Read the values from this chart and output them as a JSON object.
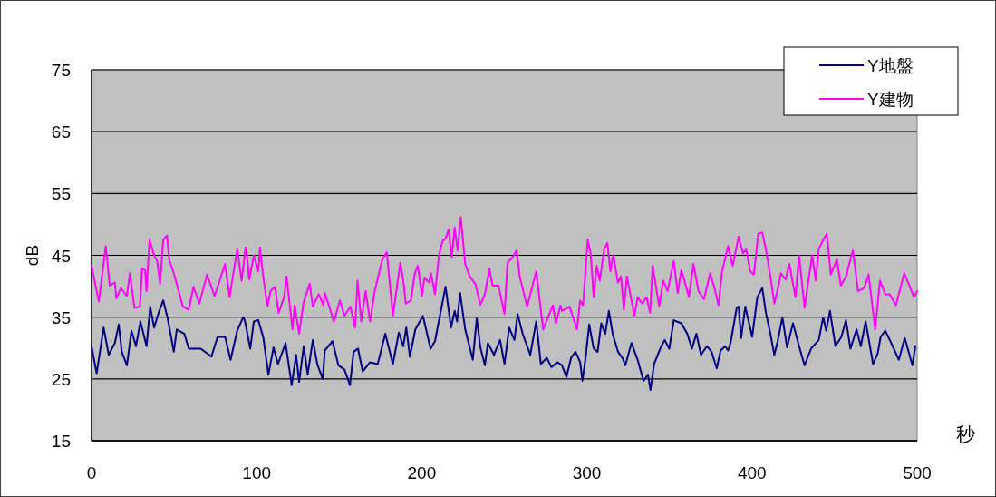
{
  "chart_data": {
    "type": "line",
    "xlabel": "秒",
    "ylabel": "dB",
    "xlim": [
      0,
      500
    ],
    "ylim": [
      15,
      75
    ],
    "xticks": [
      0,
      100,
      200,
      300,
      400,
      500
    ],
    "yticks": [
      15,
      25,
      35,
      45,
      55,
      65,
      75
    ],
    "grid": "y",
    "legend": "top right",
    "marker": "none",
    "line_style": "solid",
    "series": [
      {
        "name": "Y地盤",
        "color": "#000080",
        "x": [
          0,
          3.1,
          7.3,
          10.4,
          14.1,
          16.5,
          18.3,
          21.4,
          24.2,
          26.9,
          29.6,
          33.3,
          35.5,
          37.9,
          40.6,
          43.4,
          46.1,
          49.8,
          51.6,
          56.2,
          58.9,
          66.2,
          72.6,
          76.3,
          80.9,
          84.2,
          88.2,
          91.9,
          92.8,
          96.1,
          98.3,
          101,
          104.1,
          107.1,
          110.2,
          112.9,
          117.5,
          121.2,
          123.9,
          125.7,
          128.5,
          130.9,
          134,
          136.7,
          140,
          141.3,
          145.9,
          149.5,
          153.2,
          156.5,
          158.7,
          161.4,
          164.2,
          168.7,
          173.3,
          177.9,
          182.5,
          186.1,
          188.8,
          190.6,
          192.8,
          196.1,
          200.7,
          205.3,
          208,
          210.8,
          214.4,
          217.7,
          219.9,
          221.4,
          223.2,
          226.3,
          230.9,
          233.3,
          235.5,
          238.2,
          240,
          243.7,
          247.4,
          250.1,
          252.9,
          256.1,
          258,
          261.1,
          265.7,
          269.3,
          272.1,
          275.7,
          278.5,
          282.1,
          284.9,
          287.6,
          290.4,
          293.1,
          295.9,
          297.3,
          299.2,
          301.4,
          304.1,
          306.5,
          308.7,
          311.1,
          313.3,
          315.6,
          318.8,
          321.5,
          323.3,
          327,
          330.7,
          334.3,
          337,
          338.5,
          340.7,
          344.4,
          347.1,
          349.9,
          352.6,
          357.2,
          360.8,
          363.6,
          366.3,
          369.1,
          372.7,
          375.5,
          378.6,
          381,
          383.7,
          385.5,
          387,
          390.7,
          391.9,
          393.4,
          395.9,
          400.1,
          403.2,
          406.2,
          408.4,
          411.1,
          413.5,
          415.7,
          418.4,
          421.2,
          424.8,
          428.5,
          431.8,
          435.8,
          440.4,
          443.1,
          444.9,
          447.2,
          450.5,
          454.1,
          456.9,
          459.6,
          463.3,
          465.9,
          468.8,
          473.3,
          476.1,
          477.9,
          480.7,
          484.3,
          488.9,
          492.5,
          497.1,
          498.9
        ],
        "values": [
          30.3,
          25.9,
          33.3,
          28.9,
          30.8,
          33.8,
          29.4,
          27.2,
          32.8,
          30.3,
          34.3,
          30.3,
          36.7,
          33.3,
          35.7,
          37.7,
          34.8,
          29.4,
          33,
          32.3,
          29.9,
          29.9,
          28.6,
          31.8,
          31.8,
          28.1,
          32.8,
          35,
          34.5,
          29.9,
          34.3,
          34.5,
          31.6,
          25.7,
          30.1,
          27.4,
          30.8,
          24,
          28.9,
          24.5,
          30.3,
          25.7,
          31.3,
          27.4,
          25,
          29.6,
          31.1,
          27.2,
          26.5,
          24,
          29.4,
          29.9,
          26.2,
          27.7,
          27.4,
          32.3,
          27.4,
          32.5,
          30.3,
          33.3,
          28.6,
          33,
          35.2,
          29.9,
          31.1,
          35,
          39.9,
          33.3,
          36,
          34.3,
          38.9,
          33,
          28.1,
          34.8,
          30.1,
          27.2,
          30.8,
          28.9,
          31.3,
          27.4,
          33.3,
          31.3,
          35.5,
          32.3,
          28.9,
          34.3,
          27.4,
          28.4,
          26.9,
          27.7,
          27.2,
          25.3,
          28.4,
          29.4,
          27.7,
          24.7,
          28.4,
          33.8,
          29.9,
          29.4,
          34,
          32.3,
          36,
          32.3,
          29.4,
          28.4,
          27.2,
          30.8,
          28.1,
          24.7,
          25.7,
          23.2,
          27.4,
          29.9,
          31.3,
          29.9,
          34.5,
          34,
          32.3,
          29.9,
          32.3,
          28.9,
          30.3,
          29.4,
          26.7,
          29.6,
          30.3,
          29.6,
          30.8,
          36.5,
          36.7,
          31.6,
          36.7,
          31.8,
          38.2,
          39.7,
          35.7,
          32.3,
          28.9,
          31.3,
          35,
          30.1,
          34,
          30.3,
          27.2,
          29.9,
          31.3,
          35,
          32.8,
          36,
          30.3,
          31.8,
          34.5,
          29.9,
          33,
          30.3,
          34.3,
          27.4,
          29.1,
          31.8,
          32.8,
          30.8,
          28.1,
          31.6,
          27.2,
          30.3
        ]
      },
      {
        "name": "Y建物",
        "color": "#ff00ff",
        "x": [
          0,
          4.4,
          8.6,
          11,
          14.1,
          15,
          17.7,
          21.4,
          23.2,
          26,
          29.3,
          30.6,
          32.4,
          33.3,
          35.1,
          37.9,
          39.7,
          41.5,
          43.4,
          45.7,
          47,
          49.8,
          55.3,
          58.9,
          61.7,
          65.3,
          69.9,
          74.5,
          80.9,
          83.6,
          88.2,
          90.9,
          93.3,
          93.7,
          95.5,
          98.3,
          101,
          102,
          103.8,
          106.5,
          108.4,
          111.1,
          113.3,
          116.6,
          118.1,
          121.7,
          123,
          125.7,
          128.5,
          132.1,
          134,
          137.6,
          140.4,
          141.3,
          146.8,
          150.4,
          153.2,
          156.8,
          159.6,
          161.1,
          163.3,
          166,
          168.7,
          171.5,
          176.1,
          178.8,
          182.5,
          187,
          188.8,
          190.3,
          193.4,
          195.8,
          197.6,
          200.1,
          201.6,
          204.4,
          205.6,
          208,
          210.4,
          212.6,
          214.4,
          216.3,
          218.1,
          219.9,
          221.7,
          223.6,
          226.3,
          229,
          232.4,
          235.5,
          238.2,
          241,
          242.8,
          246.4,
          250.1,
          251.9,
          254.7,
          257.4,
          259.3,
          263.8,
          269.3,
          273.5,
          275.7,
          279.4,
          281.2,
          284,
          284.9,
          289.5,
          292.2,
          294,
          295.9,
          297.7,
          300.5,
          302.3,
          304.1,
          306,
          307.8,
          310.5,
          312.4,
          314.2,
          316,
          318.8,
          320.6,
          322.4,
          324.2,
          328.8,
          330.7,
          333.4,
          336.1,
          338.3,
          339.8,
          343.8,
          346.2,
          348.9,
          352.6,
          355,
          357.2,
          359.9,
          361.8,
          364.5,
          367.6,
          370.9,
          374.6,
          377.3,
          379.7,
          381.9,
          385.5,
          388.3,
          391.9,
          394.6,
          396.5,
          398.9,
          401.1,
          403.8,
          406.2,
          408.4,
          411.1,
          413.5,
          415.3,
          417.5,
          420.3,
          422.6,
          426.3,
          428.5,
          431.8,
          434,
          436.4,
          438.6,
          440.4,
          443.1,
          445.3,
          447.7,
          451.4,
          453.8,
          456.9,
          461.1,
          464.2,
          467.9,
          470.6,
          474.6,
          477.5,
          480.7,
          483.4,
          487.1,
          492.2,
          495.3,
          498.1,
          500
        ],
        "values": [
          43.3,
          37.5,
          46.5,
          40.1,
          40.6,
          38,
          39.7,
          38.4,
          42.1,
          36.5,
          36.7,
          42.8,
          42.6,
          39.2,
          47.5,
          45,
          44.1,
          40.4,
          47.5,
          48.2,
          44.3,
          42.1,
          36.7,
          36.2,
          39.9,
          37.2,
          41.9,
          38.4,
          43.6,
          38.2,
          46,
          40.9,
          46.3,
          46,
          41.1,
          45,
          42.4,
          46.3,
          41.9,
          36.7,
          39.2,
          39.9,
          35.7,
          38.2,
          41.6,
          33,
          36.9,
          32.3,
          37.5,
          40.4,
          36.7,
          38.7,
          36.9,
          38.9,
          34.3,
          37.7,
          35.2,
          36.7,
          33.3,
          40.9,
          34.3,
          39.2,
          34.3,
          39.2,
          44.3,
          45.5,
          35.2,
          43.8,
          40.9,
          37.2,
          37.7,
          42.1,
          43.3,
          38.4,
          41.4,
          40.6,
          42.1,
          38.7,
          45,
          47.3,
          47.7,
          49.2,
          44.6,
          49.5,
          45.8,
          51.2,
          43.6,
          41.6,
          40.4,
          37,
          38.7,
          42.8,
          40.1,
          40.1,
          35.5,
          43.8,
          44.6,
          45.8,
          41.6,
          36.7,
          42.4,
          33,
          34.5,
          36.9,
          34,
          36.9,
          36,
          36.7,
          34.5,
          33,
          37.7,
          36.9,
          47.5,
          45.3,
          38.2,
          43.3,
          40.9,
          46,
          47,
          42.4,
          45,
          40.6,
          41.6,
          36.2,
          41.6,
          35.2,
          38.2,
          37.2,
          38.2,
          35.7,
          43.3,
          36.7,
          40.9,
          39.2,
          44.1,
          38.9,
          42.6,
          40.1,
          38.2,
          43.6,
          39.2,
          37.9,
          42.1,
          39.7,
          36.9,
          42.4,
          46.5,
          43.3,
          48,
          45.3,
          46,
          42.4,
          41.9,
          48.5,
          48.7,
          46,
          41.6,
          37.2,
          39.2,
          42.1,
          41.1,
          43.6,
          38.2,
          45,
          36.5,
          40.6,
          45,
          40.9,
          46,
          47.5,
          48.5,
          41.9,
          44.3,
          40.1,
          41.6,
          45.8,
          39.2,
          39.7,
          41.9,
          33,
          40.9,
          38.7,
          38.7,
          36.9,
          42.1,
          40.1,
          38.2,
          39.2
        ]
      }
    ]
  }
}
